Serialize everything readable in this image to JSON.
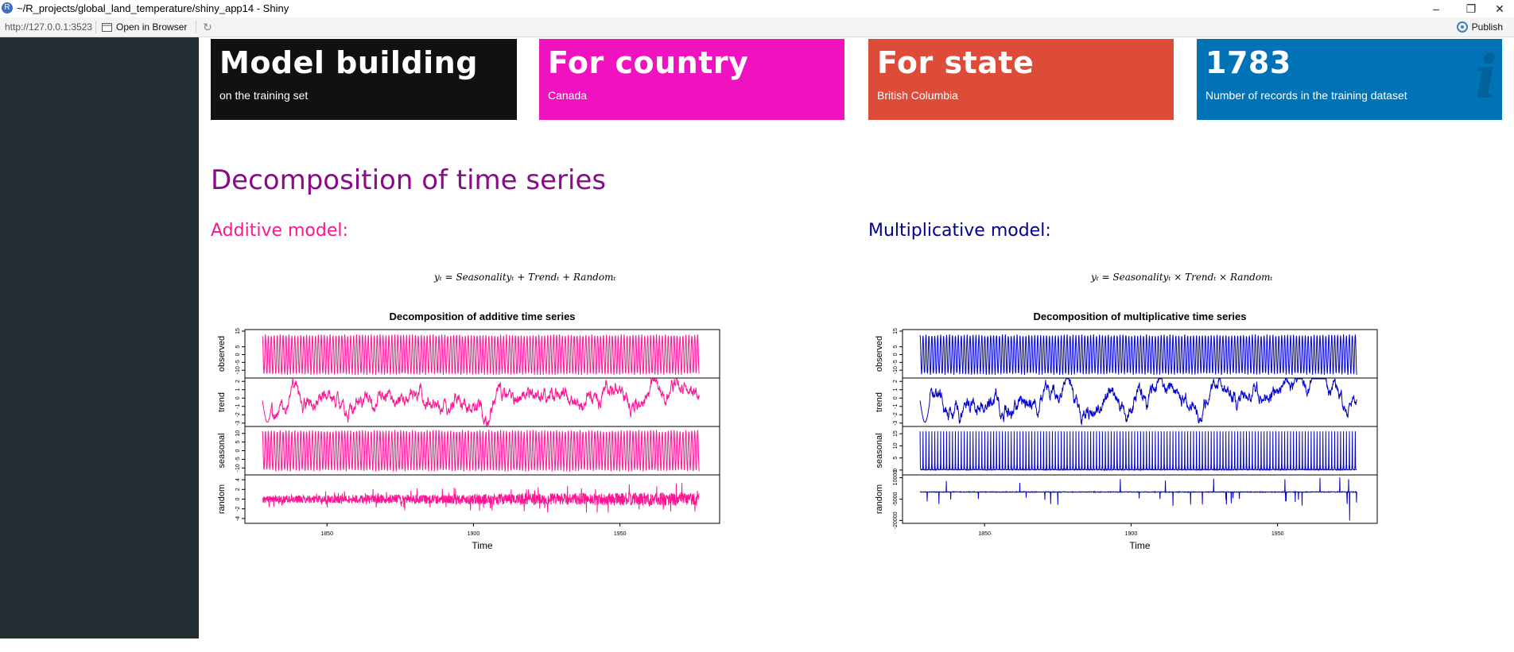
{
  "window": {
    "title": "~/R_projects/global_land_temperature/shiny_app14 - Shiny",
    "controls": {
      "minimize": "–",
      "restore": "❐",
      "close": "✕"
    }
  },
  "toolbar": {
    "url": "http://127.0.0.1:3523",
    "open_in_browser": "Open in Browser",
    "publish": "Publish"
  },
  "value_boxes": [
    {
      "value": "Model building",
      "subtitle": "on the training set",
      "color": "#111111"
    },
    {
      "value": "For country",
      "subtitle": "Canada",
      "color": "#f012be"
    },
    {
      "value": "For state",
      "subtitle": "British Columbia",
      "color": "#dd4b39"
    },
    {
      "value": "1783",
      "subtitle": "Number of records in the training dataset",
      "color": "#0073b7",
      "icon": "info-icon"
    }
  ],
  "section": {
    "title": "Decomposition of time series",
    "additive": {
      "heading": "Additive model:",
      "formula": "yₜ = Seasonalityₜ + Trendₜ + Randomₜ",
      "heading_color": "#ff1493"
    },
    "multiplicative": {
      "heading": "Multiplicative model:",
      "formula": "yₜ = Seasonalityₜ × Trendₜ × Randomₜ",
      "heading_color": "#00008b"
    }
  },
  "chart_data": [
    {
      "type": "line",
      "title": "Decomposition of additive time series",
      "xlabel": "Time",
      "x_ticks": [
        1850,
        1900,
        1950
      ],
      "xlim": [
        1822,
        1984
      ],
      "series_range": [
        1828,
        1977
      ],
      "color": "#ff1493",
      "panels": [
        {
          "name": "observed",
          "ticks": [
            "15",
            "5",
            "0",
            "-5",
            "-10"
          ],
          "ylim": [
            -15,
            16
          ],
          "kind": "seasonal",
          "amplitude": 13,
          "center": 0
        },
        {
          "name": "trend",
          "ticks": [
            "2",
            "1",
            "0",
            "-1",
            "-2",
            "-3"
          ],
          "ylim": [
            -3.4,
            2.4
          ],
          "kind": "trend"
        },
        {
          "name": "seasonal",
          "ticks": [
            "10",
            "5",
            "0",
            "-5",
            "-10"
          ],
          "ylim": [
            -14,
            14
          ],
          "kind": "seasonal",
          "amplitude": 12,
          "center": 0
        },
        {
          "name": "random",
          "ticks": [
            "4",
            "2",
            "0",
            "-2",
            "-4"
          ],
          "ylim": [
            -5,
            5
          ],
          "kind": "noise",
          "scale": 1.2
        }
      ]
    },
    {
      "type": "line",
      "title": "Decomposition of multiplicative time series",
      "xlabel": "Time",
      "x_ticks": [
        1850,
        1900,
        1950
      ],
      "xlim": [
        1822,
        1984
      ],
      "series_range": [
        1828,
        1977
      ],
      "color": "#0000cd",
      "panels": [
        {
          "name": "observed",
          "ticks": [
            "15",
            "5",
            "0",
            "-5",
            "-10"
          ],
          "ylim": [
            -15,
            16
          ],
          "kind": "seasonal",
          "amplitude": 13,
          "center": 0
        },
        {
          "name": "trend",
          "ticks": [
            "2",
            "1",
            "0",
            "-1",
            "-2",
            "-3"
          ],
          "ylim": [
            -3.4,
            2.4
          ],
          "kind": "trend"
        },
        {
          "name": "seasonal",
          "ticks": [
            "15",
            "10",
            "5",
            "0"
          ],
          "ylim": [
            -2,
            18
          ],
          "kind": "spikes",
          "amplitude": 16,
          "center": 0
        },
        {
          "name": "random",
          "ticks": [
            "10000",
            "-5000",
            "-20000"
          ],
          "ylim": [
            -22000,
            12000
          ],
          "kind": "rare-spikes",
          "scale": 3000
        }
      ]
    }
  ]
}
